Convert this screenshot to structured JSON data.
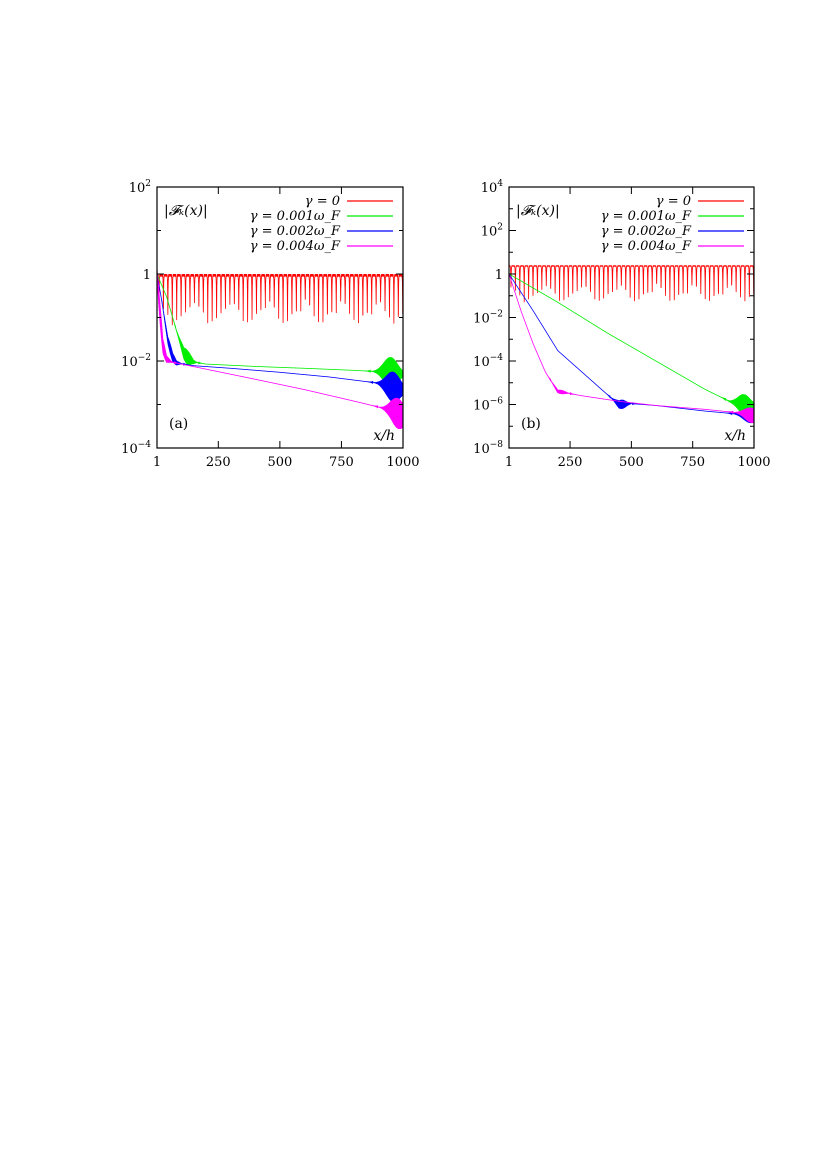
{
  "chart_data": [
    {
      "type": "line",
      "panel_label": "(a)",
      "ylabel": "|𝓕ₖ(x)|",
      "xlabel": "x/h",
      "yscale": "log",
      "xlim": [
        1,
        1000
      ],
      "ylim": [
        0.0001,
        100
      ],
      "xticks": [
        1,
        250,
        500,
        750,
        1000
      ],
      "xtick_labels": [
        "1",
        "250",
        "500",
        "750",
        "1000"
      ],
      "yticks": [
        0.0001,
        0.01,
        1,
        100
      ],
      "ytick_labels": [
        {
          "base": "10",
          "exp": "−4"
        },
        {
          "base": "10",
          "exp": "−2"
        },
        {
          "base": "1",
          "exp": ""
        },
        {
          "base": "10",
          "exp": "2"
        }
      ],
      "legend_position": "top-right",
      "series": [
        {
          "name": "γ = 0",
          "color": "#ff0000",
          "kind": "oscillating",
          "upper": 1.0,
          "lower": 0.07,
          "period": 18
        },
        {
          "name": "γ = 0.001ω_F",
          "color": "#00ee00",
          "kind": "decay",
          "points": [
            [
              1,
              1.0
            ],
            [
              40,
              0.3
            ],
            [
              80,
              0.05
            ],
            [
              110,
              0.015
            ],
            [
              125,
              0.012
            ],
            [
              150,
              0.0095
            ],
            [
              200,
              0.0085
            ],
            [
              400,
              0.0075
            ],
            [
              600,
              0.0068
            ],
            [
              800,
              0.0061
            ],
            [
              950,
              0.0055
            ],
            [
              1000,
              0.005
            ]
          ],
          "dip_x": 125,
          "dip_min": 0.0035,
          "tail_x": 950,
          "tail_amp": 0.0022
        },
        {
          "name": "γ = 0.002ω_F",
          "color": "#0000ff",
          "kind": "decay",
          "points": [
            [
              1,
              1.0
            ],
            [
              20,
              0.25
            ],
            [
              45,
              0.03
            ],
            [
              65,
              0.012
            ],
            [
              80,
              0.009
            ],
            [
              150,
              0.0078
            ],
            [
              300,
              0.0068
            ],
            [
              500,
              0.0055
            ],
            [
              700,
              0.0043
            ],
            [
              900,
              0.0031
            ],
            [
              1000,
              0.0022
            ]
          ],
          "dip_x": 70,
          "dip_min": 0.0055,
          "tail_x": 960,
          "tail_amp": 0.0012
        },
        {
          "name": "γ = 0.004ω_F",
          "color": "#ff00ff",
          "kind": "decay",
          "points": [
            [
              1,
              1.0
            ],
            [
              12,
              0.15
            ],
            [
              25,
              0.022
            ],
            [
              40,
              0.011
            ],
            [
              60,
              0.0095
            ],
            [
              100,
              0.0085
            ],
            [
              200,
              0.0065
            ],
            [
              400,
              0.0038
            ],
            [
              600,
              0.0022
            ],
            [
              800,
              0.0012
            ],
            [
              950,
              0.00075
            ],
            [
              1000,
              0.00055
            ]
          ],
          "dip_x": 32,
          "dip_min": 0.0055,
          "tail_x": 980,
          "tail_amp": 0.0003
        }
      ]
    },
    {
      "type": "line",
      "panel_label": "(b)",
      "ylabel": "|𝓕ₖ(x)|",
      "xlabel": "x/h",
      "yscale": "log",
      "xlim": [
        1,
        1000
      ],
      "ylim": [
        1e-08,
        10000
      ],
      "xticks": [
        1,
        250,
        500,
        750,
        1000
      ],
      "xtick_labels": [
        "1",
        "250",
        "500",
        "750",
        "1000"
      ],
      "yticks": [
        1e-08,
        1e-06,
        0.0001,
        0.01,
        1,
        100,
        10000
      ],
      "ytick_labels": [
        {
          "base": "10",
          "exp": "−8"
        },
        {
          "base": "10",
          "exp": "−6"
        },
        {
          "base": "10",
          "exp": "−4"
        },
        {
          "base": "10",
          "exp": "−2"
        },
        {
          "base": "1",
          "exp": ""
        },
        {
          "base": "10",
          "exp": "2"
        },
        {
          "base": "10",
          "exp": "4"
        }
      ],
      "legend_position": "top-right",
      "series": [
        {
          "name": "γ = 0",
          "color": "#ff0000",
          "kind": "oscillating",
          "upper": 2.5,
          "lower": 0.05,
          "period": 18
        },
        {
          "name": "γ = 0.001ω_F",
          "color": "#00ee00",
          "kind": "decay",
          "points": [
            [
              1,
              1.0
            ],
            [
              200,
              0.05
            ],
            [
              400,
              0.002
            ],
            [
              600,
              0.0001
            ],
            [
              800,
              5e-06
            ],
            [
              900,
              1.4e-06
            ],
            [
              960,
              1e-06
            ],
            [
              1000,
              9e-07
            ]
          ],
          "dip_x": 960,
          "dip_min": 4e-07,
          "tail_x": 960,
          "tail_amp": 6e-07
        },
        {
          "name": "γ = 0.002ω_F",
          "color": "#0000ff",
          "kind": "decay",
          "points": [
            [
              1,
              1.0
            ],
            [
              100,
              0.02
            ],
            [
              200,
              0.0003
            ],
            [
              300,
              3e-05
            ],
            [
              400,
              3e-06
            ],
            [
              450,
              1e-06
            ],
            [
              500,
              1.1e-06
            ],
            [
              600,
              9e-07
            ],
            [
              800,
              5e-07
            ],
            [
              950,
              3.5e-07
            ],
            [
              1000,
              3e-07
            ]
          ],
          "dip_x": 460,
          "dip_min": 2e-07,
          "tail_x": 985,
          "tail_amp": 1.5e-07
        },
        {
          "name": "γ = 0.004ω_F",
          "color": "#ff00ff",
          "kind": "decay",
          "points": [
            [
              1,
              1.0
            ],
            [
              50,
              0.02
            ],
            [
              100,
              0.0006
            ],
            [
              150,
              3e-05
            ],
            [
              200,
              4e-06
            ],
            [
              230,
              3.5e-06
            ],
            [
              300,
              2.5e-06
            ],
            [
              450,
              1.4e-06
            ],
            [
              600,
              9e-07
            ],
            [
              800,
              6e-07
            ],
            [
              950,
              4e-07
            ],
            [
              1000,
              3e-07
            ]
          ],
          "dip_x": 215,
          "dip_min": 1.8e-06,
          "tail_x": 990,
          "tail_amp": 1.5e-07
        }
      ]
    }
  ]
}
